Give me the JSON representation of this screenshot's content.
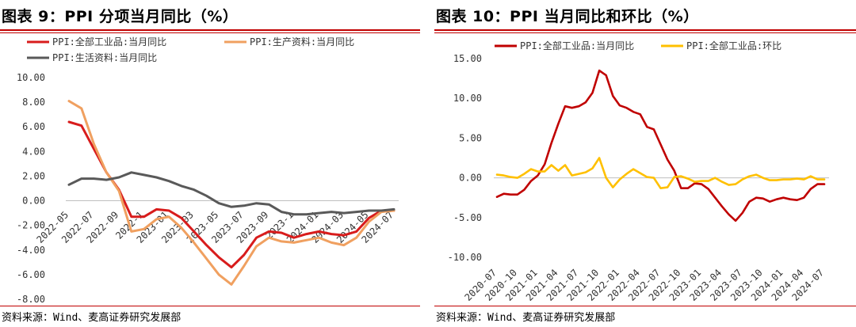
{
  "left": {
    "title": "图表 9：PPI 分项当月同比（%）",
    "source": "资料来源：Wind、麦高证券研究发展部",
    "chart_data": {
      "type": "line",
      "x": [
        "2022-05",
        "2022-06",
        "2022-07",
        "2022-08",
        "2022-09",
        "2022-10",
        "2022-11",
        "2022-12",
        "2023-01",
        "2023-02",
        "2023-03",
        "2023-04",
        "2023-05",
        "2023-06",
        "2023-07",
        "2023-08",
        "2023-09",
        "2023-10",
        "2023-11",
        "2023-12",
        "2024-01",
        "2024-02",
        "2024-03",
        "2024-04",
        "2024-05",
        "2024-06",
        "2024-07"
      ],
      "tick_labels": [
        "2022-05",
        "2022-07",
        "2022-09",
        "2022-11",
        "2023-01",
        "2023-03",
        "2023-05",
        "2023-07",
        "2023-09",
        "2023-11",
        "2024-01",
        "2024-03",
        "2024-05",
        "2024-07"
      ],
      "tick_labels_shown": [
        "2022-05",
        "2022-07",
        "2022-09",
        "2022-1",
        "2023-01",
        "2023-03",
        "2023-05",
        "2023-07",
        "2023-09",
        "2023-1",
        "2024-01",
        "2024-03",
        "2024-05",
        "2024-07"
      ],
      "ylim": [
        -8,
        10
      ],
      "yticks": [
        "10.00",
        "8.00",
        "6.00",
        "4.00",
        "2.00",
        "0.00",
        "-2.00",
        "-4.00",
        "-6.00",
        "-8.00"
      ],
      "grid": false,
      "legend_position": "top-left",
      "series": [
        {
          "name": "PPI:全部工业品:当月同比",
          "color": "#d81c1c",
          "values": [
            6.4,
            6.1,
            4.2,
            2.3,
            0.9,
            -1.3,
            -1.3,
            -0.7,
            -0.8,
            -1.4,
            -2.5,
            -3.6,
            -4.6,
            -5.4,
            -4.4,
            -3.0,
            -2.5,
            -2.6,
            -3.0,
            -2.7,
            -2.5,
            -2.7,
            -2.8,
            -2.5,
            -1.4,
            -0.8,
            -0.8
          ]
        },
        {
          "name": "PPI:生产资料:当月同比",
          "color": "#f0a060",
          "values": [
            8.1,
            7.5,
            4.6,
            2.3,
            0.8,
            -2.5,
            -2.3,
            -1.5,
            -1.3,
            -2.2,
            -3.4,
            -4.7,
            -6.0,
            -6.8,
            -5.3,
            -3.7,
            -3.0,
            -3.3,
            -3.4,
            -3.2,
            -3.0,
            -3.4,
            -3.6,
            -3.0,
            -1.7,
            -0.9,
            -0.8
          ]
        },
        {
          "name": "PPI:生活资料:当月同比",
          "color": "#595959",
          "values": [
            1.3,
            1.8,
            1.8,
            1.7,
            1.9,
            2.3,
            2.1,
            1.9,
            1.6,
            1.2,
            0.9,
            0.4,
            -0.2,
            -0.5,
            -0.4,
            -0.2,
            -0.3,
            -0.9,
            -1.1,
            -1.1,
            -1.0,
            -0.9,
            -1.0,
            -0.9,
            -0.8,
            -0.8,
            -0.7
          ]
        }
      ]
    }
  },
  "right": {
    "title": "图表 10：PPI 当月同比和环比（%）",
    "source": "资料来源：Wind、麦高证券研究发展部",
    "chart_data": {
      "type": "line",
      "x": [
        "2020-07",
        "2020-08",
        "2020-09",
        "2020-10",
        "2020-11",
        "2020-12",
        "2021-01",
        "2021-02",
        "2021-03",
        "2021-04",
        "2021-05",
        "2021-06",
        "2021-07",
        "2021-08",
        "2021-09",
        "2021-10",
        "2021-11",
        "2021-12",
        "2022-01",
        "2022-02",
        "2022-03",
        "2022-04",
        "2022-05",
        "2022-06",
        "2022-07",
        "2022-08",
        "2022-09",
        "2022-10",
        "2022-11",
        "2022-12",
        "2023-01",
        "2023-02",
        "2023-03",
        "2023-04",
        "2023-05",
        "2023-06",
        "2023-07",
        "2023-08",
        "2023-09",
        "2023-10",
        "2023-11",
        "2023-12",
        "2024-01",
        "2024-02",
        "2024-03",
        "2024-04",
        "2024-05",
        "2024-06",
        "2024-07"
      ],
      "tick_labels": [
        "2020-07",
        "2020-10",
        "2021-01",
        "2021-04",
        "2021-07",
        "2021-10",
        "2022-01",
        "2022-04",
        "2022-07",
        "2022-10",
        "2023-01",
        "2023-04",
        "2023-07",
        "2023-10",
        "2024-01",
        "2024-04",
        "2024-07"
      ],
      "ylim": [
        -10,
        15
      ],
      "yticks": [
        "15.00",
        "10.00",
        "5.00",
        "0.00",
        "-5.00",
        "-10.00"
      ],
      "grid": false,
      "legend_position": "top-left",
      "series": [
        {
          "name": "PPI:全部工业品:当月同比",
          "color": "#c00000",
          "values": [
            -2.4,
            -2.0,
            -2.1,
            -2.1,
            -1.5,
            -0.4,
            0.3,
            1.7,
            4.4,
            6.8,
            9.0,
            8.8,
            9.0,
            9.5,
            10.7,
            13.5,
            12.9,
            10.3,
            9.1,
            8.8,
            8.3,
            8.0,
            6.4,
            6.1,
            4.2,
            2.3,
            0.9,
            -1.3,
            -1.3,
            -0.7,
            -0.8,
            -1.4,
            -2.5,
            -3.6,
            -4.6,
            -5.4,
            -4.4,
            -3.0,
            -2.5,
            -2.6,
            -3.0,
            -2.7,
            -2.5,
            -2.7,
            -2.8,
            -2.5,
            -1.4,
            -0.8,
            -0.8
          ]
        },
        {
          "name": "PPI:全部工业品:环比",
          "color": "#ffc000",
          "values": [
            0.4,
            0.3,
            0.1,
            0.0,
            0.5,
            1.1,
            0.8,
            0.8,
            1.6,
            0.9,
            1.6,
            0.3,
            0.5,
            0.7,
            1.2,
            2.5,
            0.0,
            -1.2,
            -0.2,
            0.5,
            1.1,
            0.6,
            0.1,
            0.0,
            -1.3,
            -1.2,
            0.1,
            0.2,
            -0.1,
            -0.5,
            -0.4,
            -0.4,
            0.0,
            -0.5,
            -0.9,
            -0.8,
            -0.2,
            0.2,
            0.4,
            0.0,
            -0.3,
            -0.3,
            -0.2,
            -0.2,
            -0.1,
            -0.2,
            0.2,
            -0.2,
            -0.2
          ]
        }
      ]
    }
  }
}
